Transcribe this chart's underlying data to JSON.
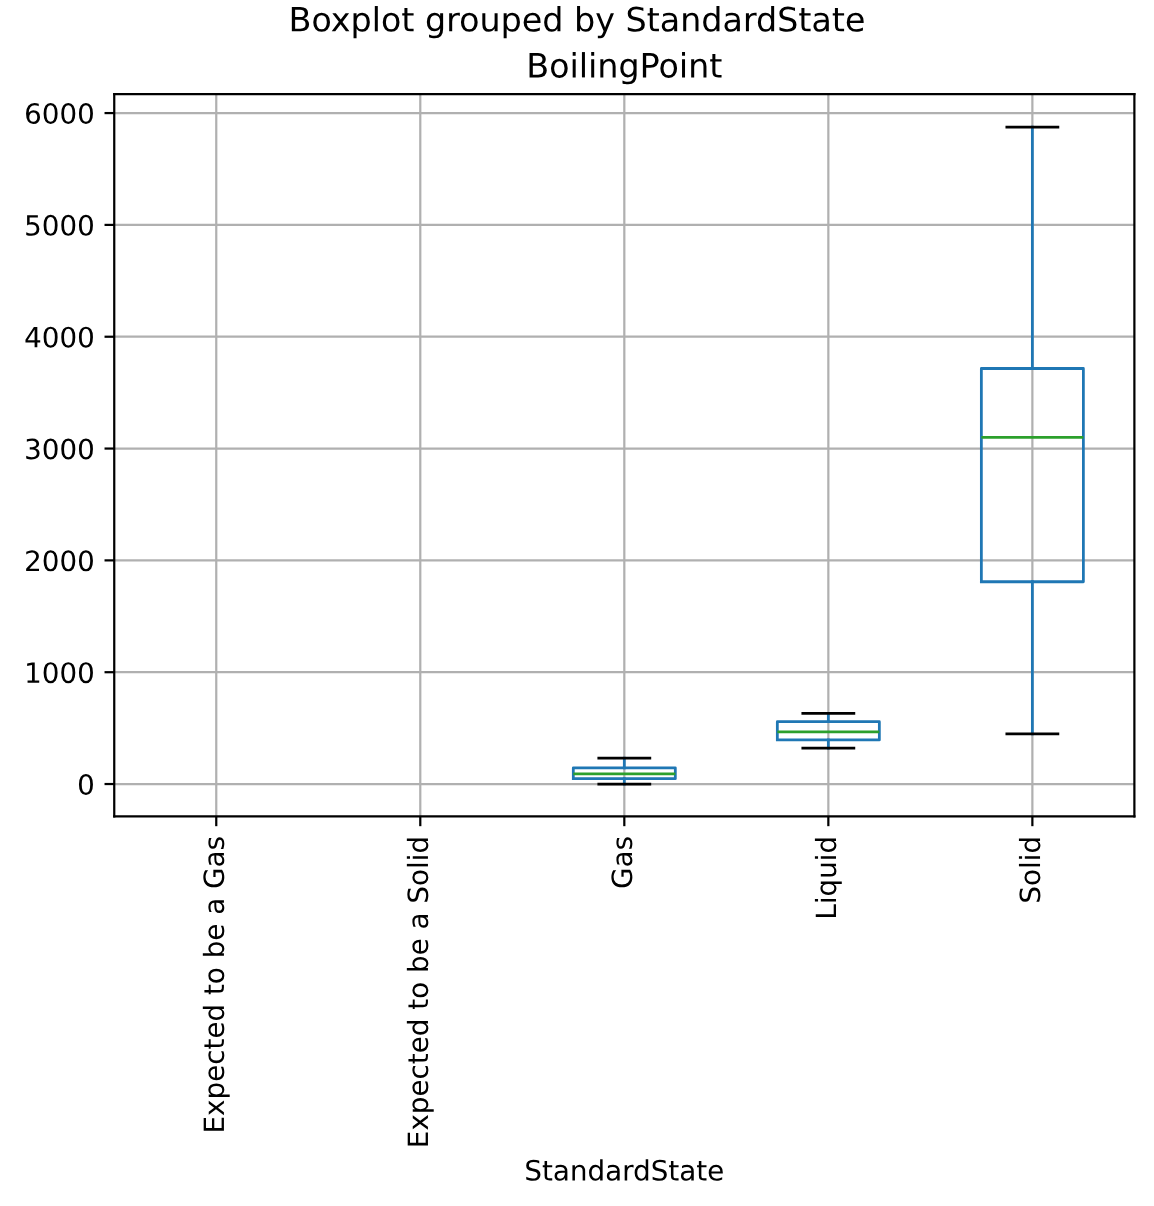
{
  "chart_data": {
    "type": "box",
    "title": "Boxplot grouped by StandardState",
    "subtitle": "BoilingPoint",
    "xlabel": "StandardState",
    "categories": [
      "Expected to be a Gas",
      "Expected to be a Solid",
      "Gas",
      "Liquid",
      "Solid"
    ],
    "boxes": [
      null,
      null,
      {
        "low": 0,
        "q1": 48,
        "median": 91,
        "q3": 145,
        "high": 231
      },
      {
        "low": 321,
        "q1": 394,
        "median": 467,
        "q3": 558,
        "high": 631
      },
      {
        "low": 449,
        "q1": 1809,
        "median": 3100,
        "q3": 3716,
        "high": 5875
      }
    ],
    "color": "#1f77b4",
    "ylim": [
      -290,
      6170
    ],
    "yticks": [
      0,
      1000,
      2000,
      3000,
      4000,
      5000,
      6000
    ],
    "grid": true
  }
}
